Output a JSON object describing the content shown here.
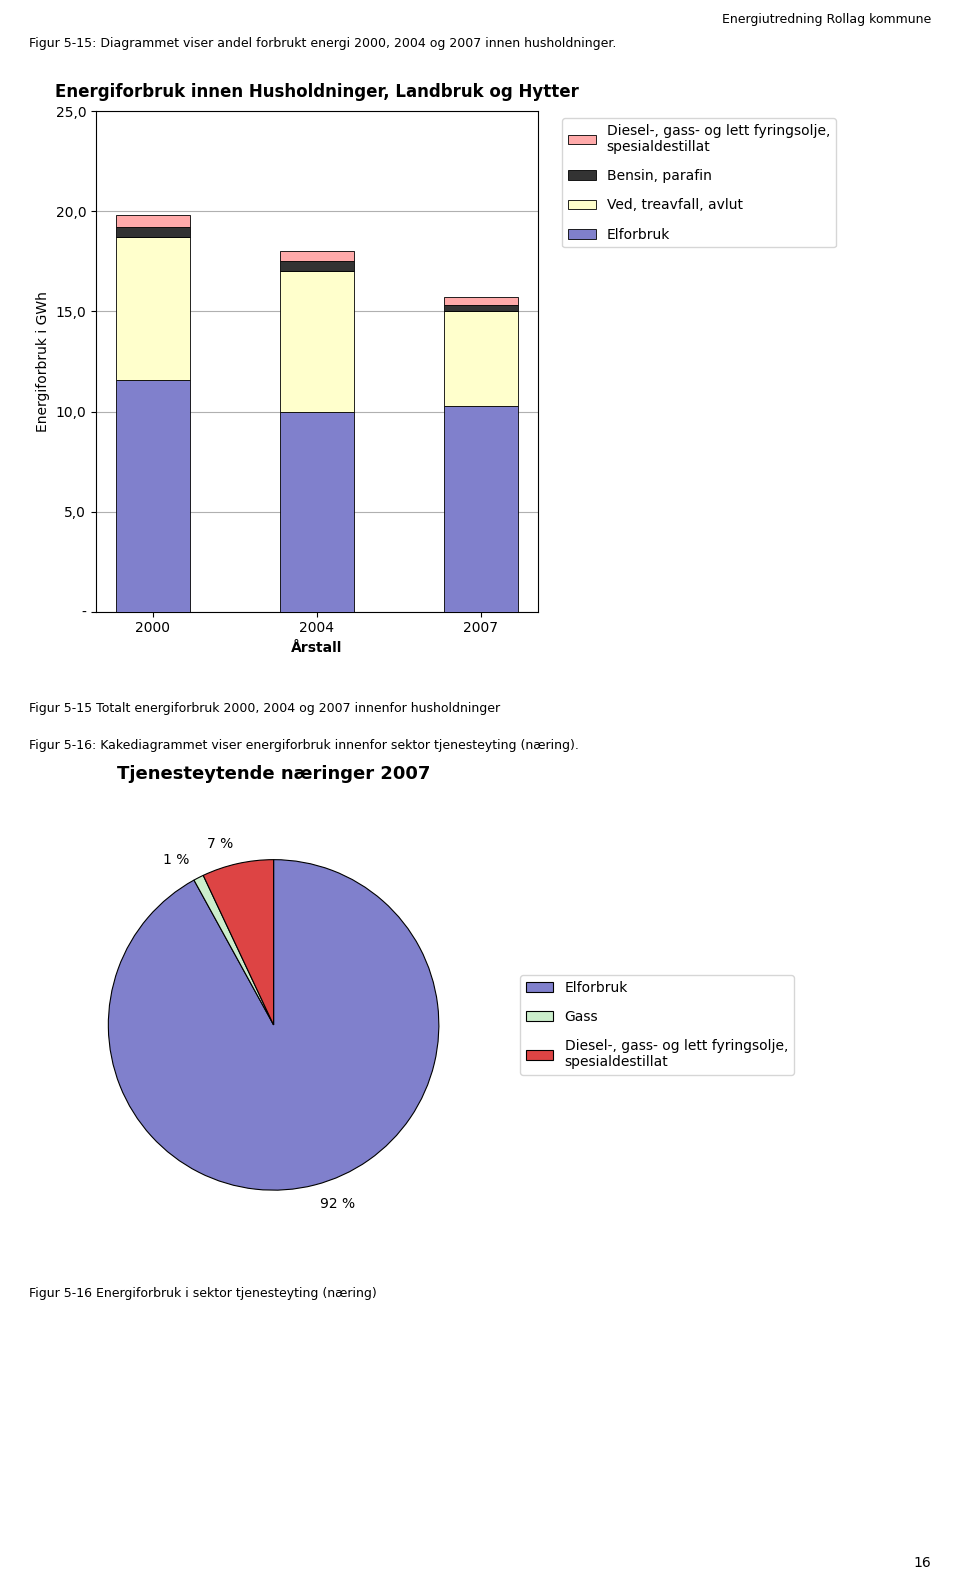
{
  "title": "Energiutredning Rollag kommune",
  "annotations": [
    "16"
  ],
  "chart_data": [
    {
      "type": "bar",
      "title": "Energiforbruk innen Husholdninger, Landbruk og Hytter",
      "subtitle": "Figur 5-15: Diagrammet viser andel forbrukt energi 2000, 2004 og 2007 innen husholdninger.",
      "annotations": [
        "Figur 5-15 Totalt energiforbruk 2000, 2004 og 2007 innenfor husholdninger"
      ],
      "x_label": "Årstall",
      "y_label": "Energiforbruk i GWh",
      "categories": [
        "2000",
        "2004",
        "2007"
      ],
      "stacked": true,
      "series": [
        {
          "name": "Elforbruk",
          "color": "#8080cc",
          "values": [
            11.6,
            10.0,
            10.3
          ]
        },
        {
          "name": "Ved, treavfall, avlut",
          "color": "#ffffcc",
          "values": [
            7.1,
            7.0,
            4.7
          ]
        },
        {
          "name": "Bensin, parafin",
          "color": "#333333",
          "values": [
            0.5,
            0.5,
            0.3
          ]
        },
        {
          "name": "Diesel-, gass- og lett fyringsolje,\nspesialdestillat",
          "color": "#ffaaaa",
          "values": [
            0.6,
            0.5,
            0.4
          ]
        }
      ],
      "ylim": [
        0,
        25
      ],
      "yticks": [
        {
          "value": 0,
          "label": "-"
        },
        {
          "value": 5,
          "label": "5,0"
        },
        {
          "value": 10,
          "label": "10,0"
        },
        {
          "value": 15,
          "label": "15,0"
        },
        {
          "value": 20,
          "label": "20,0"
        },
        {
          "value": 25,
          "label": "25,0"
        }
      ],
      "grid": true,
      "legend": "right"
    },
    {
      "type": "pie",
      "title": "Tjenesteytende næringer 2007",
      "subtitle": "Figur 5-16: Kakediagrammet viser energiforbruk innenfor sektor tjenesteyting (næring).",
      "annotations": [
        "Figur 5-16 Energiforbruk i sektor tjenesteyting (næring)"
      ],
      "categories": [
        "Elforbruk",
        "Gass",
        "Diesel-, gass- og lett fyringsolje,\nspesialdestillat"
      ],
      "values": [
        92,
        1,
        7
      ],
      "value_labels": [
        "92 %",
        "1 %",
        "7 %"
      ],
      "colors": [
        "#8080cc",
        "#cceecc",
        "#dd4444"
      ],
      "data_labels": true,
      "legend": "right"
    }
  ]
}
